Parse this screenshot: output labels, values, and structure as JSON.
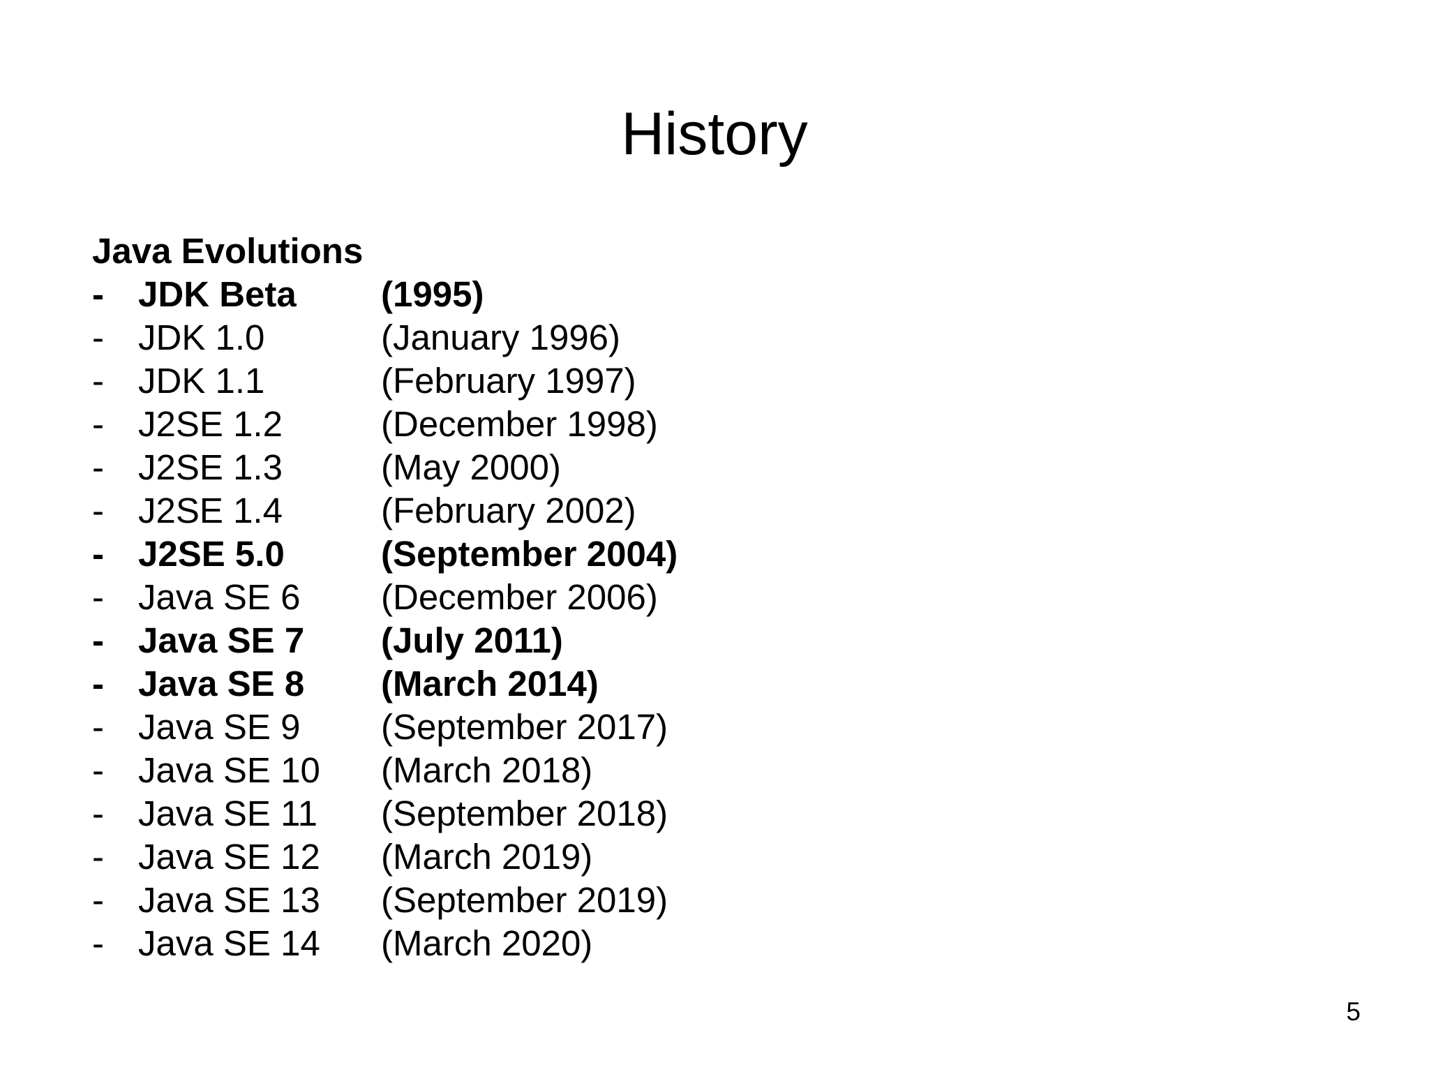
{
  "slide": {
    "title": "History",
    "section_heading": "Java Evolutions",
    "bullet_marker": "-",
    "page_number": "5"
  },
  "releases": [
    {
      "version": "JDK Beta",
      "date": "(1995)",
      "bold": true
    },
    {
      "version": "JDK 1.0",
      "date": "(January 1996)",
      "bold": false
    },
    {
      "version": "JDK 1.1",
      "date": "(February 1997)",
      "bold": false
    },
    {
      "version": "J2SE 1.2",
      "date": "(December 1998)",
      "bold": false
    },
    {
      "version": "J2SE 1.3",
      "date": "(May 2000)",
      "bold": false
    },
    {
      "version": "J2SE 1.4",
      "date": "(February 2002)",
      "bold": false
    },
    {
      "version": "J2SE 5.0",
      "date": "(September 2004)",
      "bold": true
    },
    {
      "version": "Java SE 6",
      "date": "(December 2006)",
      "bold": false
    },
    {
      "version": "Java SE 7",
      "date": "(July 2011)",
      "bold": true
    },
    {
      "version": "Java SE 8",
      "date": "(March 2014)",
      "bold": true
    },
    {
      "version": "Java SE 9",
      "date": "(September 2017)",
      "bold": false
    },
    {
      "version": "Java SE 10",
      "date": "(March 2018)",
      "bold": false
    },
    {
      "version": "Java SE 11",
      "date": "(September 2018)",
      "bold": false
    },
    {
      "version": "Java SE 12",
      "date": "(March 2019)",
      "bold": false
    },
    {
      "version": "Java SE 13",
      "date": "(September 2019)",
      "bold": false
    },
    {
      "version": "Java SE 14",
      "date": "(March 2020)",
      "bold": false
    }
  ]
}
